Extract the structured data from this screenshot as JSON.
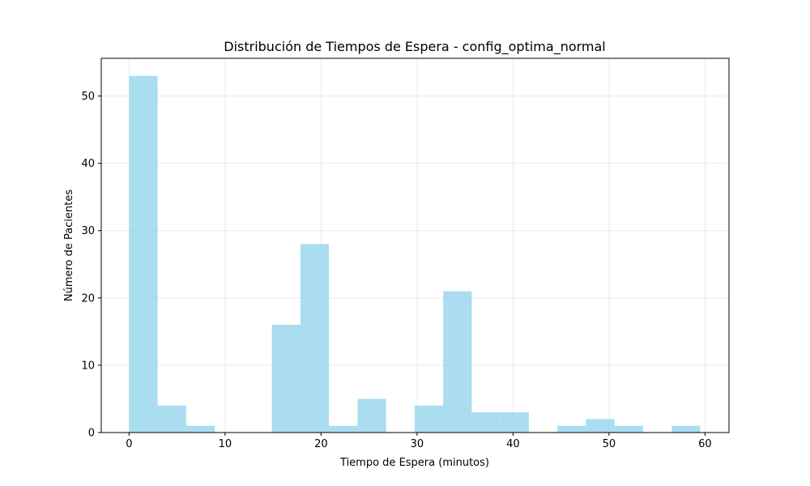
{
  "chart_data": {
    "type": "bar",
    "title": "Distribución de Tiempos de Espera - config_optima_normal",
    "xlabel": "Tiempo de Espera (minutos)",
    "ylabel": "Número de Pacientes",
    "xlim": [
      -2.9,
      62.5
    ],
    "ylim": [
      0,
      55.6
    ],
    "xticks": [
      0,
      10,
      20,
      30,
      40,
      50,
      60
    ],
    "yticks": [
      0,
      10,
      20,
      30,
      40,
      50
    ],
    "grid": true,
    "bar_color": "#87CEEB",
    "bin_width": 2.975,
    "bins": [
      {
        "x": 0.0,
        "count": 53
      },
      {
        "x": 2.975,
        "count": 4
      },
      {
        "x": 5.95,
        "count": 1
      },
      {
        "x": 8.925,
        "count": 0
      },
      {
        "x": 11.9,
        "count": 0
      },
      {
        "x": 14.875,
        "count": 16
      },
      {
        "x": 17.85,
        "count": 28
      },
      {
        "x": 20.825,
        "count": 1
      },
      {
        "x": 23.8,
        "count": 5
      },
      {
        "x": 26.775,
        "count": 0
      },
      {
        "x": 29.75,
        "count": 4
      },
      {
        "x": 32.725,
        "count": 21
      },
      {
        "x": 35.7,
        "count": 3
      },
      {
        "x": 38.675,
        "count": 3
      },
      {
        "x": 41.65,
        "count": 0
      },
      {
        "x": 44.625,
        "count": 1
      },
      {
        "x": 47.6,
        "count": 2
      },
      {
        "x": 50.575,
        "count": 1
      },
      {
        "x": 53.55,
        "count": 0
      },
      {
        "x": 56.525,
        "count": 1
      }
    ]
  }
}
